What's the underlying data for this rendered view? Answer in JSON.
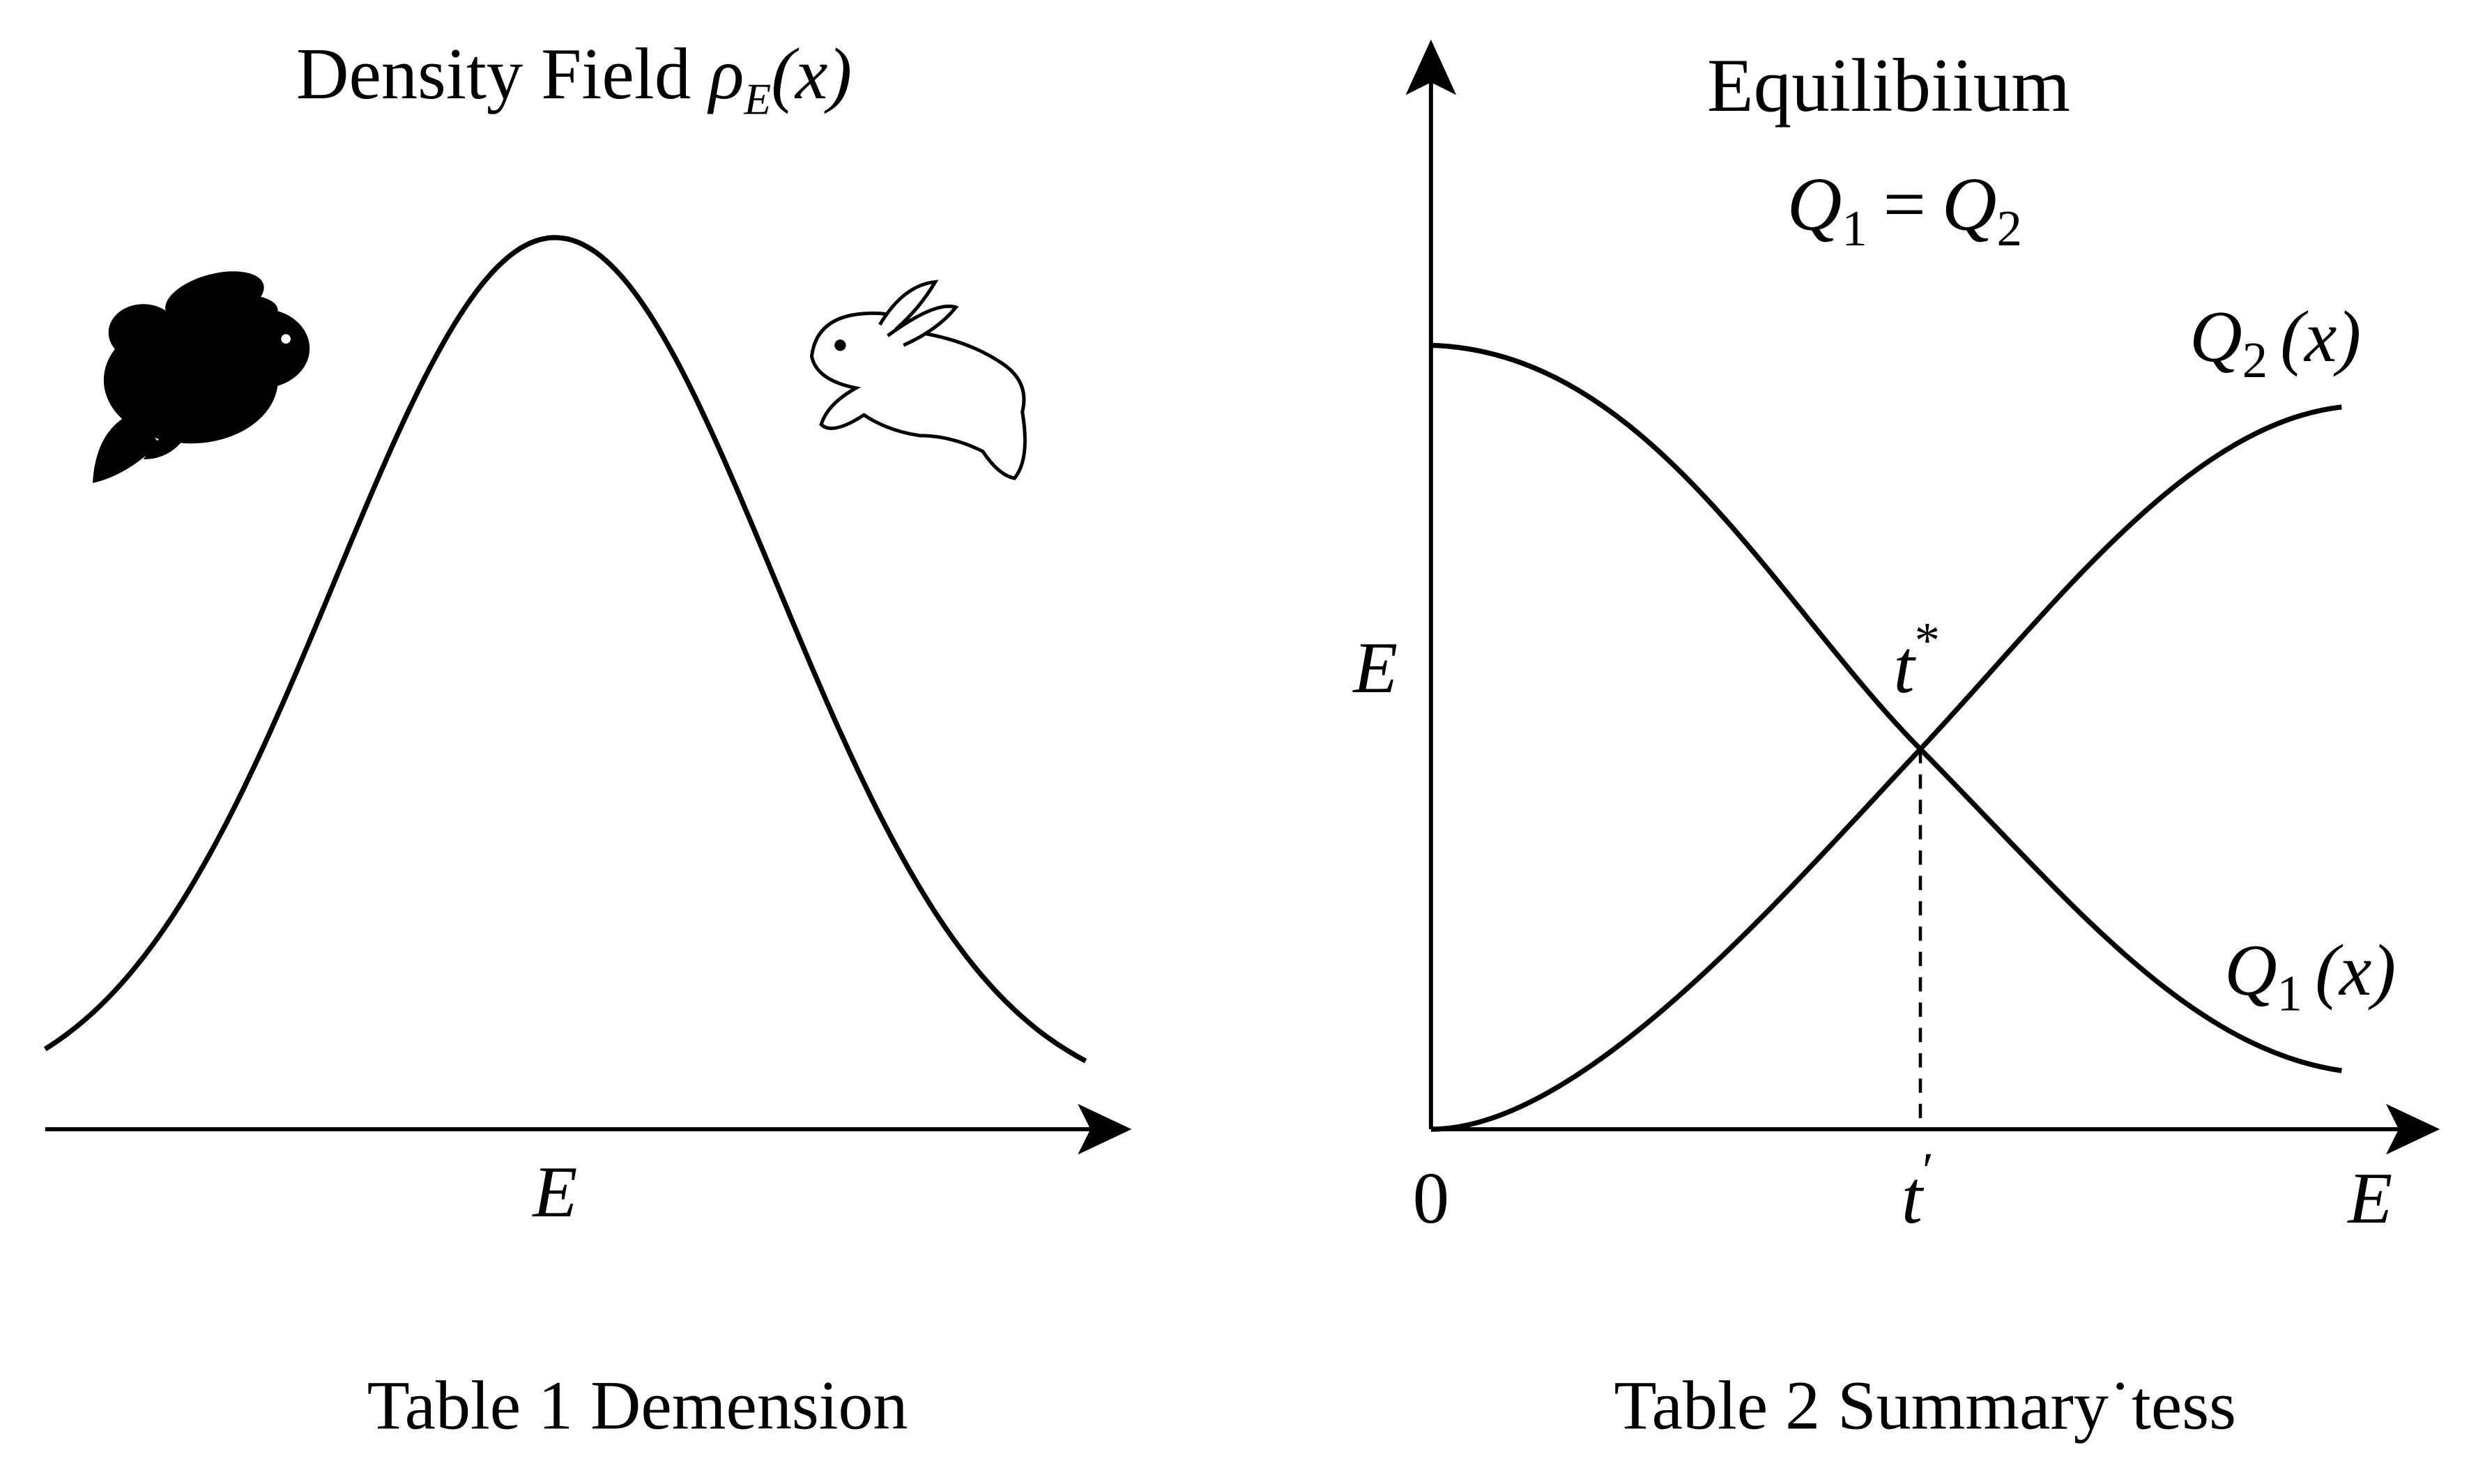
{
  "left": {
    "title": "Density Field",
    "title_math": {
      "base": "ρ",
      "sub": "E",
      "arg": "(x)"
    },
    "x_label": "E",
    "caption": "Table 1  Demension"
  },
  "right": {
    "title": "Equilibiium",
    "equation": {
      "lhs": "Q",
      "lhs_sub": "1",
      "eq": "=",
      "rhs": "Q",
      "rhs_sub": "2"
    },
    "curve_q2": {
      "base": "Q",
      "sub": "2",
      "arg": "(x)"
    },
    "curve_q1": {
      "base": "Q",
      "sub": "1",
      "arg": "(x)"
    },
    "intersection": {
      "base": "t",
      "sup": "*"
    },
    "y_label": "E",
    "origin": "0",
    "x_tick": {
      "base": "t",
      "sup": "′"
    },
    "x_label": "E",
    "caption": "Table 2  Summary˙tess"
  }
}
